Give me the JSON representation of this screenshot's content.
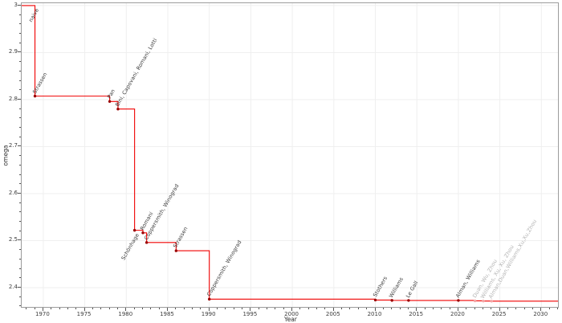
{
  "figure": {
    "background": "#ffffff",
    "line_color": "#f00000",
    "marker_color": "#990000",
    "muted_marker_color": "#f2a5a5",
    "label_color": "#3a3a3a",
    "muted_label_color": "#b3b3b3",
    "grid_color": "#efefef",
    "spine_color": "#9c9c9c",
    "tick_color": "#555555"
  },
  "chart_data": {
    "type": "line",
    "subtype": "step-post",
    "title": "",
    "xlabel": "Year",
    "ylabel": "omega",
    "xlim": [
      1967.4,
      2032.0
    ],
    "ylim": [
      2.359,
      3.005
    ],
    "grid": true,
    "baseline_omega": 3,
    "x_ticks": [
      1970,
      1975,
      1980,
      1985,
      1990,
      1995,
      2000,
      2005,
      2010,
      2015,
      2020,
      2025,
      2030
    ],
    "x_minor_step": 1,
    "y_ticks": [
      {
        "value": 3.0,
        "label": "3"
      },
      {
        "value": 2.9,
        "label": "2.9"
      },
      {
        "value": 2.8,
        "label": "2.8"
      },
      {
        "value": 2.7,
        "label": "2.7"
      },
      {
        "value": 2.6,
        "label": "2.6"
      },
      {
        "value": 2.5,
        "label": "2.5"
      },
      {
        "value": 2.4,
        "label": "2.4"
      }
    ],
    "y_minor_step": 0.02,
    "annotations": [
      {
        "year": 1969,
        "omega": 3,
        "label": "naive",
        "anchor": "below"
      }
    ],
    "points": [
      {
        "year": 1969,
        "omega": 2.8074,
        "label": "Strassen"
      },
      {
        "year": 1978,
        "omega": 2.796,
        "label": "Pan"
      },
      {
        "year": 1979,
        "omega": 2.7799,
        "label": "Bini, Capovani, Romani, Lotti"
      },
      {
        "year": 1981,
        "omega": 2.522,
        "label": "Schönhage",
        "anchor": "below"
      },
      {
        "year": 1982,
        "omega": 2.5166,
        "label": "Romani"
      },
      {
        "year": 1982,
        "omega": 2.496,
        "label": "Coppersmith, Winograd"
      },
      {
        "year": 1986,
        "omega": 2.4785,
        "label": "Strassen"
      },
      {
        "year": 1990,
        "omega": 2.3755,
        "label": "Coppersmith, Winograd"
      },
      {
        "year": 2010,
        "omega": 2.3737,
        "label": "Stothers"
      },
      {
        "year": 2012,
        "omega": 2.3729,
        "label": "Williams"
      },
      {
        "year": 2014,
        "omega": 2.3728639,
        "label": "Le Gall"
      },
      {
        "year": 2020,
        "omega": 2.3728596,
        "label": "Alman, Williams"
      },
      {
        "year": 2022,
        "omega": 2.371866,
        "label": "Duan, Wu, Zhou",
        "muted": true
      },
      {
        "year": 2023,
        "omega": 2.371552,
        "label": "Williams, Xu, Xu, Zhou",
        "muted": true
      },
      {
        "year": 2024,
        "omega": 2.371339,
        "label": "Alman,Duan,Williams,Xu,Xu,Zhou",
        "muted": true
      }
    ]
  }
}
